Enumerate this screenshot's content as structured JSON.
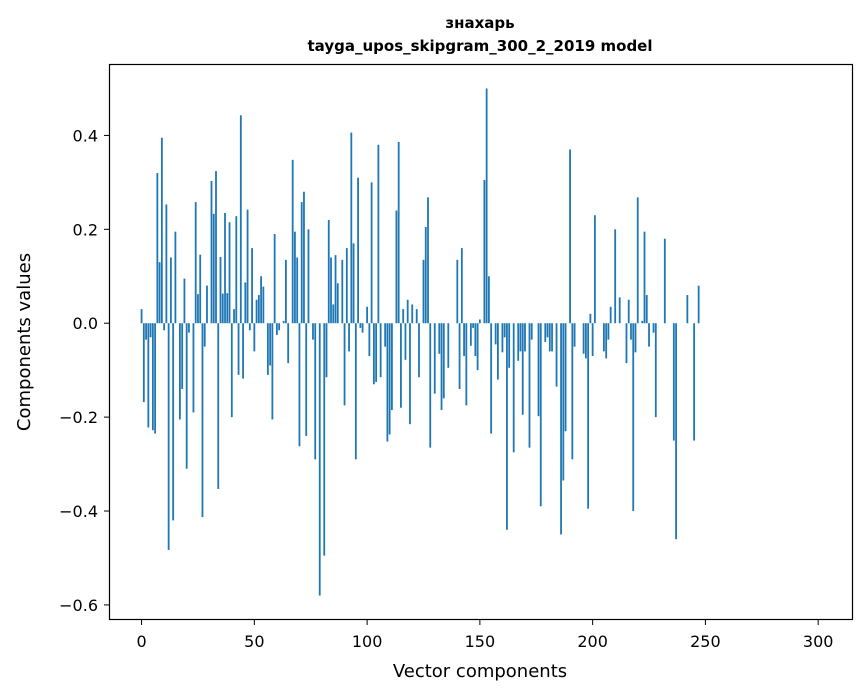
{
  "chart_data": {
    "type": "bar",
    "title": "знахарь",
    "subtitle": "tayga_upos_skipgram_300_2_2019 model",
    "xlabel": "Vector components",
    "ylabel": "Components values",
    "xlim": [
      -14,
      315
    ],
    "ylim": [
      -0.63,
      0.55
    ],
    "xticks": [
      0,
      50,
      100,
      150,
      200,
      250,
      300
    ],
    "yticks": [
      -0.6,
      -0.4,
      -0.2,
      0.0,
      0.2,
      0.4
    ],
    "ytick_labels": [
      "−0.6",
      "−0.4",
      "−0.2",
      "0.0",
      "0.2",
      "0.4"
    ],
    "bar_color": "#1f77b4",
    "grid": false,
    "values": [
      0.03,
      -0.168,
      -0.035,
      -0.222,
      -0.03,
      -0.228,
      -0.235,
      0.32,
      0.13,
      0.395,
      -0.015,
      0.253,
      -0.483,
      0.14,
      -0.42,
      0.195,
      0.0,
      -0.205,
      -0.14,
      0.095,
      -0.31,
      -0.02,
      0.0,
      -0.19,
      0.258,
      0.062,
      0.146,
      -0.413,
      -0.05,
      0.08,
      0.0,
      0.303,
      0.233,
      0.324,
      -0.353,
      0.141,
      0.063,
      0.235,
      0.064,
      0.215,
      -0.2,
      0.03,
      0.228,
      -0.11,
      0.443,
      -0.118,
      0.087,
      0.242,
      -0.015,
      0.16,
      -0.06,
      0.05,
      0.06,
      0.1,
      0.078,
      0.0,
      -0.11,
      -0.09,
      -0.205,
      0.19,
      -0.025,
      -0.015,
      0.0,
      0.005,
      0.135,
      -0.085,
      0.0,
      0.348,
      0.195,
      0.14,
      -0.262,
      0.258,
      0.28,
      -0.24,
      0.2,
      0.0,
      -0.035,
      -0.29,
      0.0,
      -0.58,
      0.0,
      -0.495,
      -0.115,
      0.22,
      0.14,
      0.04,
      0.145,
      0.085,
      0.0,
      0.135,
      -0.175,
      0.16,
      -0.06,
      0.406,
      0.17,
      -0.29,
      0.31,
      -0.01,
      -0.02,
      0.0,
      0.035,
      -0.07,
      0.3,
      -0.13,
      -0.125,
      0.38,
      -0.115,
      0.0,
      -0.05,
      -0.252,
      -0.237,
      -0.185,
      0.0,
      0.24,
      0.386,
      -0.18,
      0.03,
      -0.078,
      0.05,
      -0.215,
      0.04,
      0.0,
      0.03,
      -0.115,
      0.0,
      0.135,
      0.205,
      0.268,
      -0.265,
      0.0,
      -0.15,
      0.0,
      -0.065,
      -0.185,
      -0.16,
      -0.0,
      -0.095,
      -0.0,
      0.0,
      0.0,
      0.135,
      -0.14,
      0.16,
      -0.07,
      -0.175,
      0.0,
      -0.048,
      -0.01,
      -0.07,
      -0.1,
      0.008,
      0.0,
      0.305,
      0.5,
      0.1,
      -0.235,
      0.0,
      -0.045,
      -0.12,
      0.0,
      -0.062,
      -0.03,
      -0.44,
      -0.095,
      0.0,
      -0.275,
      0.0,
      -0.08,
      -0.06,
      -0.195,
      -0.06,
      0.0,
      -0.265,
      -0.035,
      0.0,
      0.0,
      -0.198,
      -0.39,
      0.0,
      -0.04,
      -0.03,
      -0.06,
      -0.06,
      0.0,
      -0.135,
      0.0,
      -0.45,
      -0.335,
      -0.23,
      0.0,
      0.37,
      -0.29,
      -0.05,
      -0.0,
      0.0,
      0.0,
      -0.065,
      -0.075,
      -0.395,
      0.02,
      -0.07,
      0.23,
      0.0,
      0.0,
      0.0,
      -0.06,
      -0.075,
      -0.035,
      0.035,
      -0.0,
      0.2,
      0.0,
      0.055,
      -0.0,
      0.0,
      -0.085,
      0.05,
      -0.035,
      -0.4,
      -0.062,
      0.268,
      0.0,
      0.005,
      0.195,
      0.06,
      -0.05,
      0.0,
      -0.02,
      -0.2,
      0.0,
      0.0,
      0.0,
      0.18,
      0.0,
      -0.0,
      0.0,
      -0.25,
      -0.46,
      0.0,
      0.0,
      0.0,
      0.0,
      0.06,
      0.0,
      0.0,
      -0.25,
      0.0,
      0.08,
      0.0,
      0.0,
      0.0,
      0.0,
      0.0,
      0.0,
      0.0,
      0.0,
      0.0,
      0.0,
      0.0,
      0.0,
      0.0,
      0.0,
      0.0,
      0.0,
      0.0,
      0.0,
      0.0,
      0.0,
      0.0,
      0.0,
      0.0,
      0.0,
      0.0,
      0.0,
      0.0,
      0.0,
      0.0,
      0.0,
      0.0,
      0.0,
      0.0,
      0.0,
      0.0,
      0.0,
      0.0,
      0.0,
      0.0,
      0.0,
      0.0,
      0.0,
      0.0,
      0.0,
      0.0,
      0.0,
      0.0,
      0.0,
      0.0,
      0.0,
      0.0,
      0.0,
      0.0,
      0.0,
      0.0,
      0.0,
      0.0,
      0.0,
      0.0,
      0.0,
      0.0,
      0.0,
      0.0,
      0.0
    ]
  }
}
